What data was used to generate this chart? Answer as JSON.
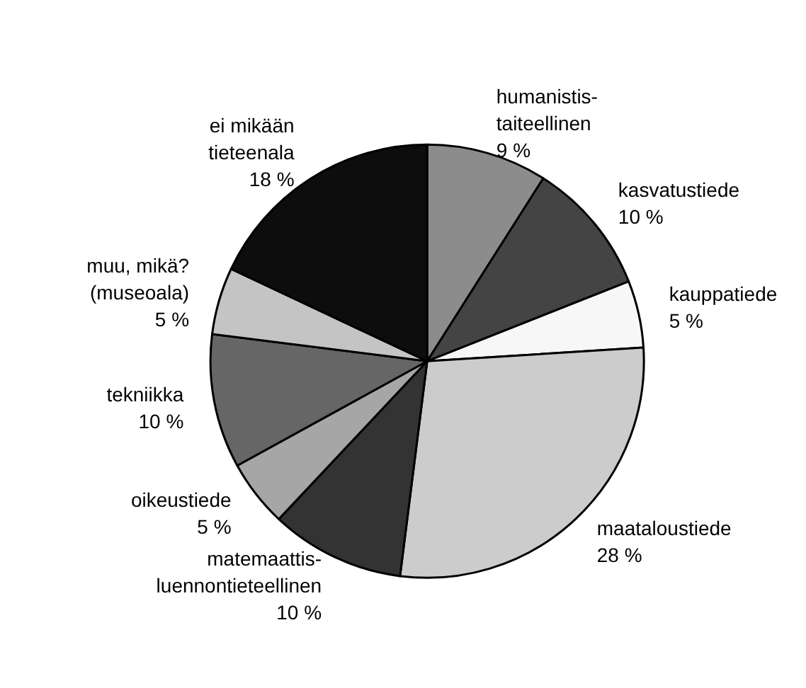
{
  "chart_data": {
    "type": "pie",
    "categories": [
      "humanistis-\ntaiteellinen",
      "kasvatustiede",
      "kauppatiede",
      "maataloustiede",
      "matemaattis-\nluennontieteellinen",
      "oikeustiede",
      "tekniikka",
      "muu, mikä?\n(museoala)",
      "ei mikään\ntieteenala"
    ],
    "values": [
      9,
      10,
      5,
      28,
      10,
      5,
      10,
      5,
      18
    ],
    "value_labels": [
      "9 %",
      "10 %",
      "5 %",
      "28 %",
      "10 %",
      "5 %",
      "10 %",
      "5 %",
      "18 %"
    ],
    "colors": [
      "#8c8c8c",
      "#444444",
      "#f7f7f7",
      "#cccccc",
      "#333333",
      "#a6a6a6",
      "#666666",
      "#c4c4c4",
      "#0d0d0d"
    ],
    "legend": false
  }
}
